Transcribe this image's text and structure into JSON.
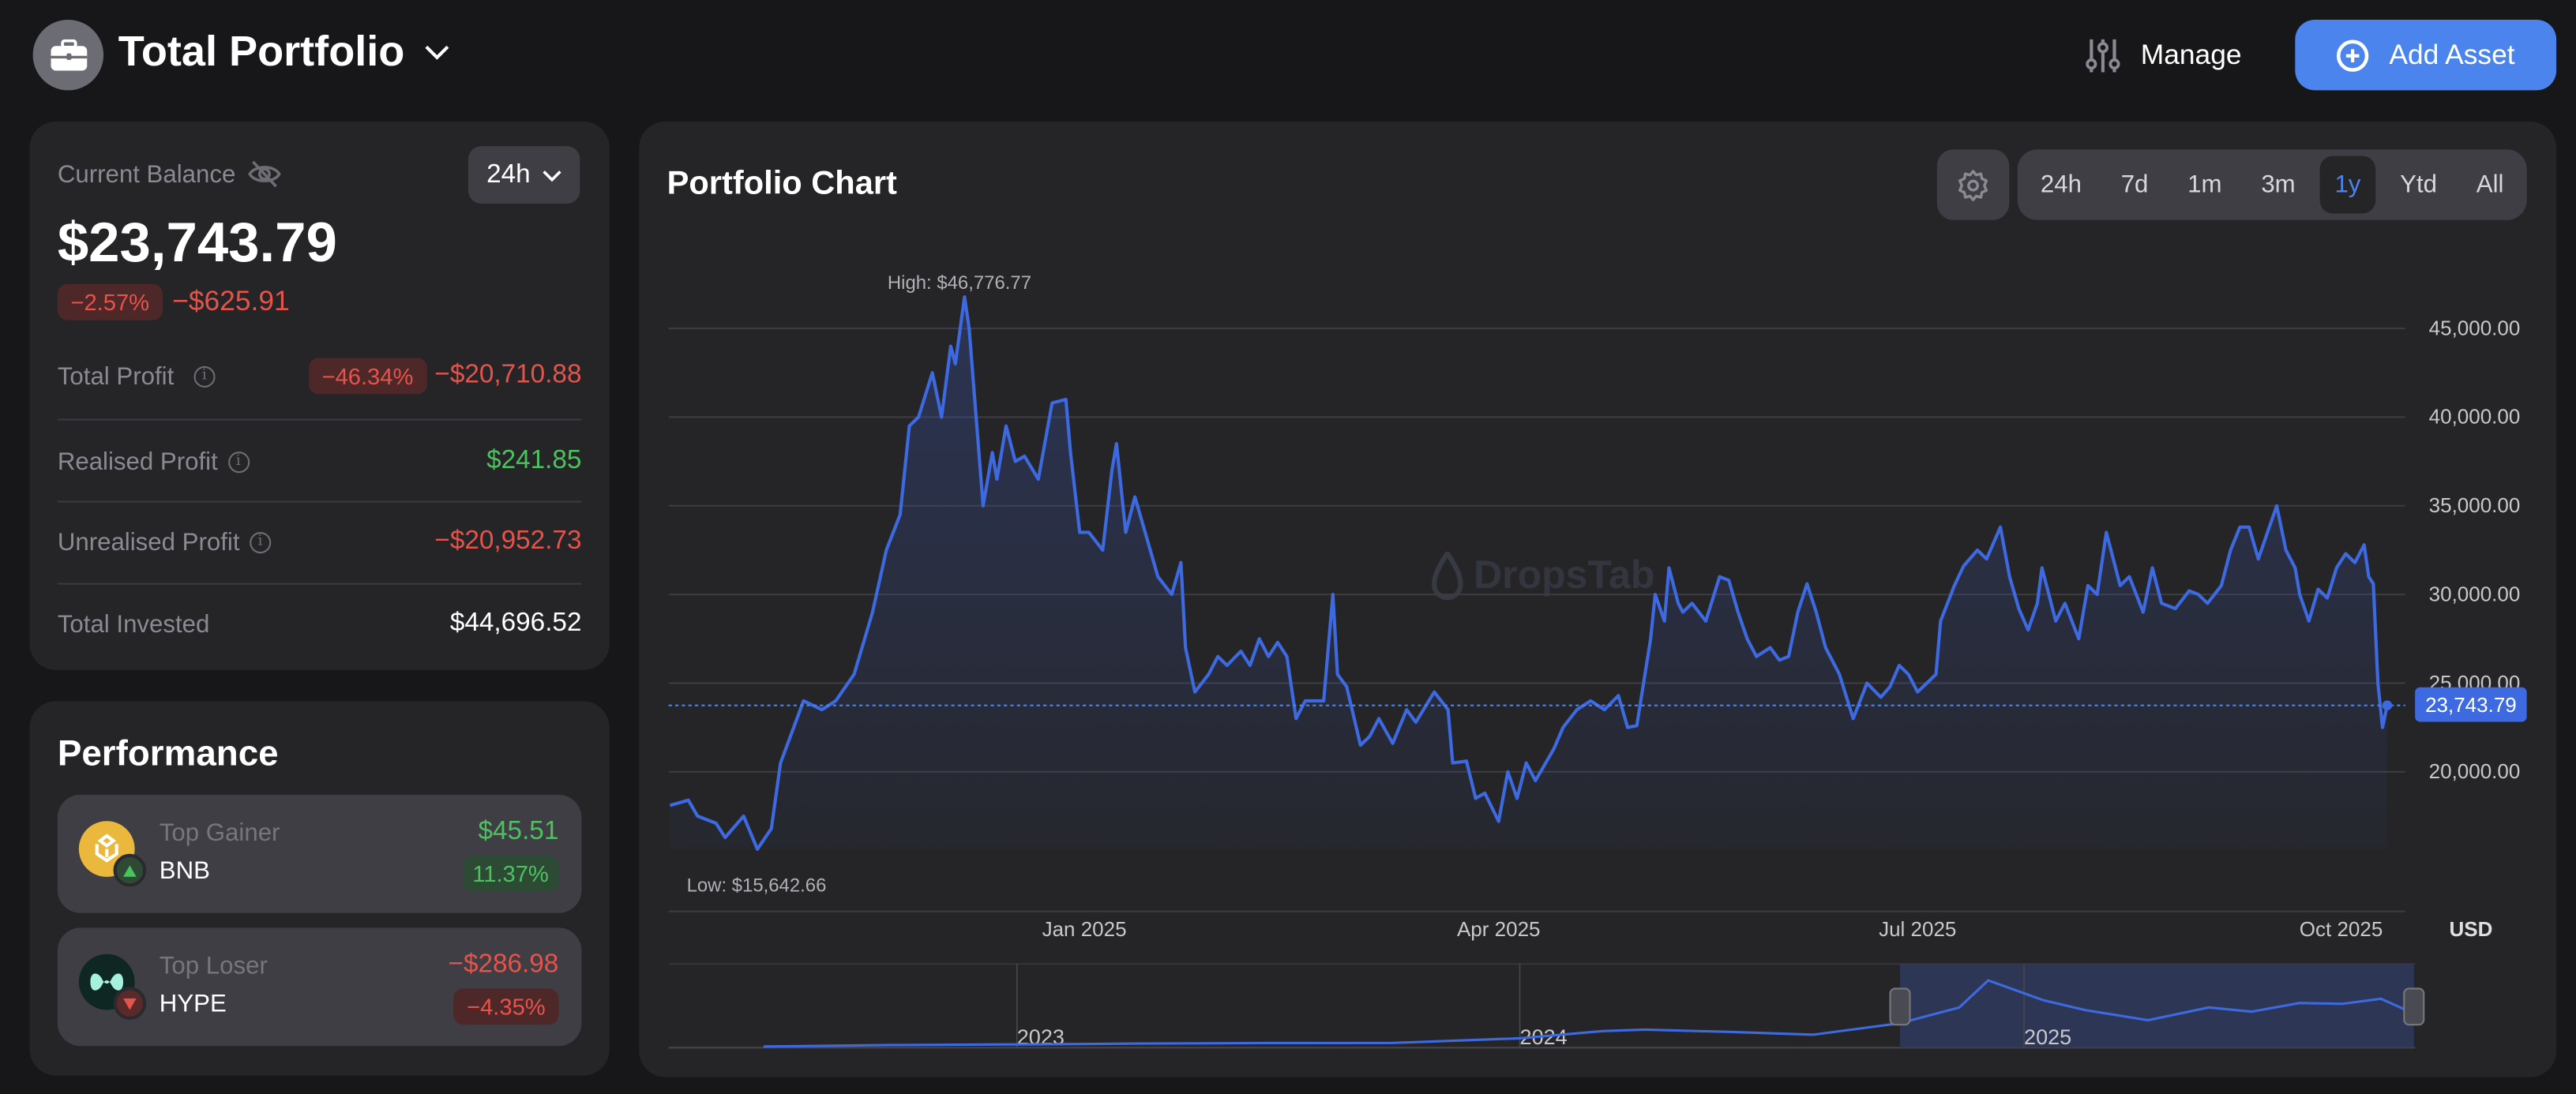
{
  "header": {
    "title": "Total Portfolio",
    "manage_label": "Manage",
    "add_asset_label": "Add Asset"
  },
  "balance_card": {
    "label": "Current Balance",
    "period": "24h",
    "balance": "$23,743.79",
    "change_pct": "−2.57%",
    "change_abs": "−$625.91",
    "rows": [
      {
        "label": "Total Profit",
        "badge": "−46.34%",
        "value": "−$20,710.88"
      },
      {
        "label": "Realised Profit",
        "value": "$241.85"
      },
      {
        "label": "Unrealised Profit",
        "value": "−$20,952.73"
      },
      {
        "label": "Total Invested",
        "value": "$44,696.52"
      }
    ]
  },
  "performance": {
    "title": "Performance",
    "gainer": {
      "label": "Top Gainer",
      "symbol": "BNB",
      "value": "$45.51",
      "pct": "11.37%"
    },
    "loser": {
      "label": "Top Loser",
      "symbol": "HYPE",
      "value": "−$286.98",
      "pct": "−4.35%"
    }
  },
  "chart_panel": {
    "title": "Portfolio Chart",
    "ranges": [
      "24h",
      "7d",
      "1m",
      "3m",
      "1y",
      "Ytd",
      "All"
    ],
    "active_range": "1y",
    "watermark": "DropsTab"
  },
  "colors": {
    "accent": "#4a84ec",
    "line": "#3d6ae0",
    "negative": "#e5534b",
    "positive": "#4cc25f"
  },
  "chart_data": {
    "type": "area",
    "currency_label": "USD",
    "ylim": [
      15000,
      47000
    ],
    "yticks": [
      20000,
      25000,
      30000,
      35000,
      40000,
      45000
    ],
    "ytick_labels": [
      "20,000.00",
      "25,000.00",
      "30,000.00",
      "35,000.00",
      "40,000.00",
      "45,000.00"
    ],
    "xticks": [
      "2025-01-01",
      "2025-04-01",
      "2025-07-01",
      "2025-10-01"
    ],
    "xtick_labels": [
      "Jan 2025",
      "Apr 2025",
      "Jul 2025",
      "Oct 2025"
    ],
    "grid": true,
    "high_label": "High: $46,776.77",
    "low_label": "Low: $15,642.66",
    "current_value": 23743.79,
    "current_label": "23,743.79",
    "series": [
      {
        "points": [
          [
            "2024-10-03",
            18100
          ],
          [
            "2024-10-07",
            18400
          ],
          [
            "2024-10-09",
            17500
          ],
          [
            "2024-10-13",
            17100
          ],
          [
            "2024-10-15",
            16300
          ],
          [
            "2024-10-19",
            17500
          ],
          [
            "2024-10-22",
            15642.66
          ],
          [
            "2024-10-25",
            16800
          ],
          [
            "2024-10-27",
            20500
          ],
          [
            "2024-11-01",
            24000
          ],
          [
            "2024-11-05",
            23500
          ],
          [
            "2024-11-08",
            24000
          ],
          [
            "2024-11-12",
            25500
          ],
          [
            "2024-11-16",
            29000
          ],
          [
            "2024-11-19",
            32500
          ],
          [
            "2024-11-22",
            34500
          ],
          [
            "2024-11-24",
            39500
          ],
          [
            "2024-11-26",
            40000
          ],
          [
            "2024-11-29",
            42500
          ],
          [
            "2024-12-01",
            40000
          ],
          [
            "2024-12-03",
            44000
          ],
          [
            "2024-12-04",
            43000
          ],
          [
            "2024-12-06",
            46776.77
          ],
          [
            "2024-12-07",
            45000
          ],
          [
            "2024-12-10",
            35000
          ],
          [
            "2024-12-12",
            38000
          ],
          [
            "2024-12-13",
            36500
          ],
          [
            "2024-12-15",
            39500
          ],
          [
            "2024-12-17",
            37500
          ],
          [
            "2024-12-19",
            37800
          ],
          [
            "2024-12-22",
            36500
          ],
          [
            "2024-12-25",
            40800
          ],
          [
            "2024-12-28",
            41000
          ],
          [
            "2024-12-29",
            38000
          ],
          [
            "2024-12-31",
            33500
          ],
          [
            "2025-01-02",
            33500
          ],
          [
            "2025-01-05",
            32500
          ],
          [
            "2025-01-07",
            37000
          ],
          [
            "2025-01-08",
            38500
          ],
          [
            "2025-01-10",
            33500
          ],
          [
            "2025-01-12",
            35500
          ],
          [
            "2025-01-14",
            33700
          ],
          [
            "2025-01-17",
            31000
          ],
          [
            "2025-01-20",
            30000
          ],
          [
            "2025-01-22",
            31800
          ],
          [
            "2025-01-23",
            27000
          ],
          [
            "2025-01-25",
            24500
          ],
          [
            "2025-01-28",
            25500
          ],
          [
            "2025-01-30",
            26500
          ],
          [
            "2025-02-01",
            26000
          ],
          [
            "2025-02-04",
            26800
          ],
          [
            "2025-02-06",
            26000
          ],
          [
            "2025-02-08",
            27500
          ],
          [
            "2025-02-10",
            26500
          ],
          [
            "2025-02-12",
            27300
          ],
          [
            "2025-02-14",
            26500
          ],
          [
            "2025-02-16",
            23000
          ],
          [
            "2025-02-18",
            24000
          ],
          [
            "2025-02-22",
            24000
          ],
          [
            "2025-02-24",
            30000
          ],
          [
            "2025-02-25",
            25500
          ],
          [
            "2025-02-27",
            24800
          ],
          [
            "2025-03-02",
            21500
          ],
          [
            "2025-03-04",
            22000
          ],
          [
            "2025-03-06",
            23000
          ],
          [
            "2025-03-09",
            21600
          ],
          [
            "2025-03-12",
            23500
          ],
          [
            "2025-03-14",
            22800
          ],
          [
            "2025-03-18",
            24500
          ],
          [
            "2025-03-21",
            23500
          ],
          [
            "2025-03-22",
            20500
          ],
          [
            "2025-03-25",
            20600
          ],
          [
            "2025-03-27",
            18500
          ],
          [
            "2025-03-29",
            18800
          ],
          [
            "2025-04-01",
            17200
          ],
          [
            "2025-04-03",
            20000
          ],
          [
            "2025-04-05",
            18500
          ],
          [
            "2025-04-07",
            20500
          ],
          [
            "2025-04-09",
            19500
          ],
          [
            "2025-04-13",
            21300
          ],
          [
            "2025-04-15",
            22500
          ],
          [
            "2025-04-18",
            23500
          ],
          [
            "2025-04-21",
            24000
          ],
          [
            "2025-04-24",
            23500
          ],
          [
            "2025-04-27",
            24300
          ],
          [
            "2025-04-29",
            22500
          ],
          [
            "2025-05-01",
            22600
          ],
          [
            "2025-05-04",
            27500
          ],
          [
            "2025-05-05",
            30000
          ],
          [
            "2025-05-07",
            28500
          ],
          [
            "2025-05-08",
            31500
          ],
          [
            "2025-05-10",
            29500
          ],
          [
            "2025-05-11",
            29000
          ],
          [
            "2025-05-13",
            29500
          ],
          [
            "2025-05-16",
            28500
          ],
          [
            "2025-05-19",
            31000
          ],
          [
            "2025-05-21",
            30800
          ],
          [
            "2025-05-23",
            29000
          ],
          [
            "2025-05-25",
            27500
          ],
          [
            "2025-05-27",
            26500
          ],
          [
            "2025-05-30",
            27000
          ],
          [
            "2025-06-01",
            26300
          ],
          [
            "2025-06-03",
            26500
          ],
          [
            "2025-06-05",
            29000
          ],
          [
            "2025-06-07",
            30600
          ],
          [
            "2025-06-09",
            29000
          ],
          [
            "2025-06-11",
            27000
          ],
          [
            "2025-06-14",
            25500
          ],
          [
            "2025-06-17",
            23000
          ],
          [
            "2025-06-20",
            25000
          ],
          [
            "2025-06-23",
            24200
          ],
          [
            "2025-06-25",
            24800
          ],
          [
            "2025-06-27",
            26000
          ],
          [
            "2025-06-29",
            25500
          ],
          [
            "2025-07-01",
            24500
          ],
          [
            "2025-07-03",
            25000
          ],
          [
            "2025-07-05",
            25500
          ],
          [
            "2025-07-06",
            28500
          ],
          [
            "2025-07-09",
            30500
          ],
          [
            "2025-07-11",
            31600
          ],
          [
            "2025-07-14",
            32500
          ],
          [
            "2025-07-16",
            32000
          ],
          [
            "2025-07-19",
            33800
          ],
          [
            "2025-07-21",
            31000
          ],
          [
            "2025-07-23",
            29200
          ],
          [
            "2025-07-25",
            28000
          ],
          [
            "2025-07-27",
            29500
          ],
          [
            "2025-07-28",
            31500
          ],
          [
            "2025-07-31",
            28500
          ],
          [
            "2025-08-02",
            29500
          ],
          [
            "2025-08-05",
            27500
          ],
          [
            "2025-08-07",
            30500
          ],
          [
            "2025-08-09",
            30000
          ],
          [
            "2025-08-11",
            33500
          ],
          [
            "2025-08-14",
            30500
          ],
          [
            "2025-08-16",
            31000
          ],
          [
            "2025-08-19",
            29000
          ],
          [
            "2025-08-21",
            31500
          ],
          [
            "2025-08-23",
            29500
          ],
          [
            "2025-08-26",
            29200
          ],
          [
            "2025-08-29",
            30200
          ],
          [
            "2025-08-31",
            30000
          ],
          [
            "2025-09-02",
            29500
          ],
          [
            "2025-09-05",
            30500
          ],
          [
            "2025-09-07",
            32500
          ],
          [
            "2025-09-09",
            33800
          ],
          [
            "2025-09-11",
            33800
          ],
          [
            "2025-09-13",
            32000
          ],
          [
            "2025-09-15",
            33500
          ],
          [
            "2025-09-17",
            35000
          ],
          [
            "2025-09-19",
            32500
          ],
          [
            "2025-09-21",
            31500
          ],
          [
            "2025-09-22",
            30000
          ],
          [
            "2025-09-24",
            28500
          ],
          [
            "2025-09-26",
            30300
          ],
          [
            "2025-09-28",
            29800
          ],
          [
            "2025-09-30",
            31500
          ],
          [
            "2025-10-02",
            32300
          ],
          [
            "2025-10-04",
            31800
          ],
          [
            "2025-10-06",
            32800
          ],
          [
            "2025-10-07",
            31000
          ],
          [
            "2025-10-08",
            30600
          ],
          [
            "2025-10-09",
            25000
          ],
          [
            "2025-10-10",
            22500
          ],
          [
            "2025-10-11",
            23743.79
          ]
        ]
      }
    ],
    "navigator": {
      "xtick_labels": [
        "2023",
        "2024",
        "2025"
      ],
      "xticks": [
        "2023-01-01",
        "2024-01-01",
        "2025-01-01"
      ],
      "selection": [
        "2024-10-03",
        "2025-10-11"
      ],
      "points": [
        [
          "2022-07-01",
          800
        ],
        [
          "2022-10-01",
          1800
        ],
        [
          "2023-01-01",
          2300
        ],
        [
          "2023-04-01",
          2800
        ],
        [
          "2023-07-01",
          3200
        ],
        [
          "2023-10-01",
          3300
        ],
        [
          "2024-01-01",
          6500
        ],
        [
          "2024-03-01",
          11500
        ],
        [
          "2024-04-01",
          12500
        ],
        [
          "2024-06-01",
          11000
        ],
        [
          "2024-08-01",
          9000
        ],
        [
          "2024-10-03",
          17000
        ],
        [
          "2024-11-15",
          28000
        ],
        [
          "2024-12-06",
          46776.77
        ],
        [
          "2025-01-15",
          33000
        ],
        [
          "2025-02-15",
          26000
        ],
        [
          "2025-04-01",
          19000
        ],
        [
          "2025-05-15",
          28000
        ],
        [
          "2025-06-15",
          25000
        ],
        [
          "2025-07-20",
          31000
        ],
        [
          "2025-08-20",
          30500
        ],
        [
          "2025-09-17",
          34000
        ],
        [
          "2025-10-11",
          23743.79
        ]
      ]
    }
  }
}
